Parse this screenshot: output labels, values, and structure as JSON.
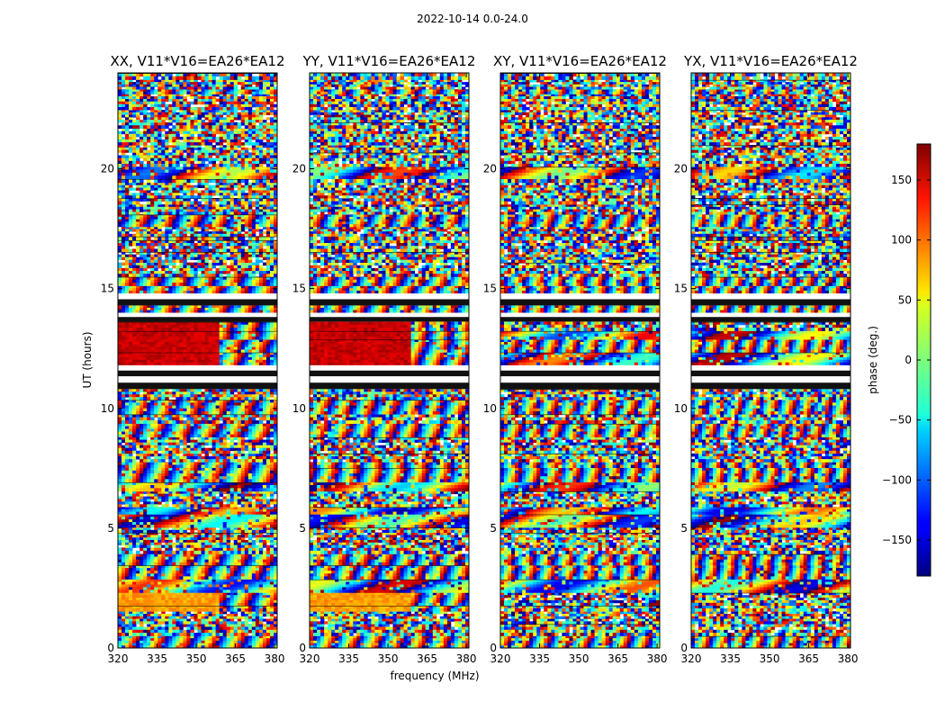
{
  "figure": {
    "suptitle": "2022-10-14 0.0-24.0",
    "xlabel": "frequency (MHz)",
    "ylabel": "UT (hours)"
  },
  "chart_data": {
    "type": "heatmap",
    "title": "2022-10-14 0.0-24.0",
    "xlabel": "frequency (MHz)",
    "ylabel": "UT (hours)",
    "xlim": [
      320,
      381
    ],
    "ylim": [
      0,
      24
    ],
    "xticks": [
      320,
      335,
      350,
      365,
      380
    ],
    "yticks": [
      0,
      5,
      10,
      15,
      20
    ],
    "panels": [
      {
        "title": "XX, V11*V16=EA26*EA12",
        "pol": "XX"
      },
      {
        "title": "YY, V11*V16=EA26*EA12",
        "pol": "YY"
      },
      {
        "title": "XY, V11*V16=EA26*EA12",
        "pol": "XY"
      },
      {
        "title": "YX, V11*V16=EA26*EA12",
        "pol": "YX"
      }
    ],
    "colorbar": {
      "label": "phase (deg.)",
      "range": [
        -180,
        180
      ],
      "ticks": [
        -150,
        -100,
        -50,
        0,
        50,
        100,
        150
      ],
      "colormap": "jet"
    }
  }
}
